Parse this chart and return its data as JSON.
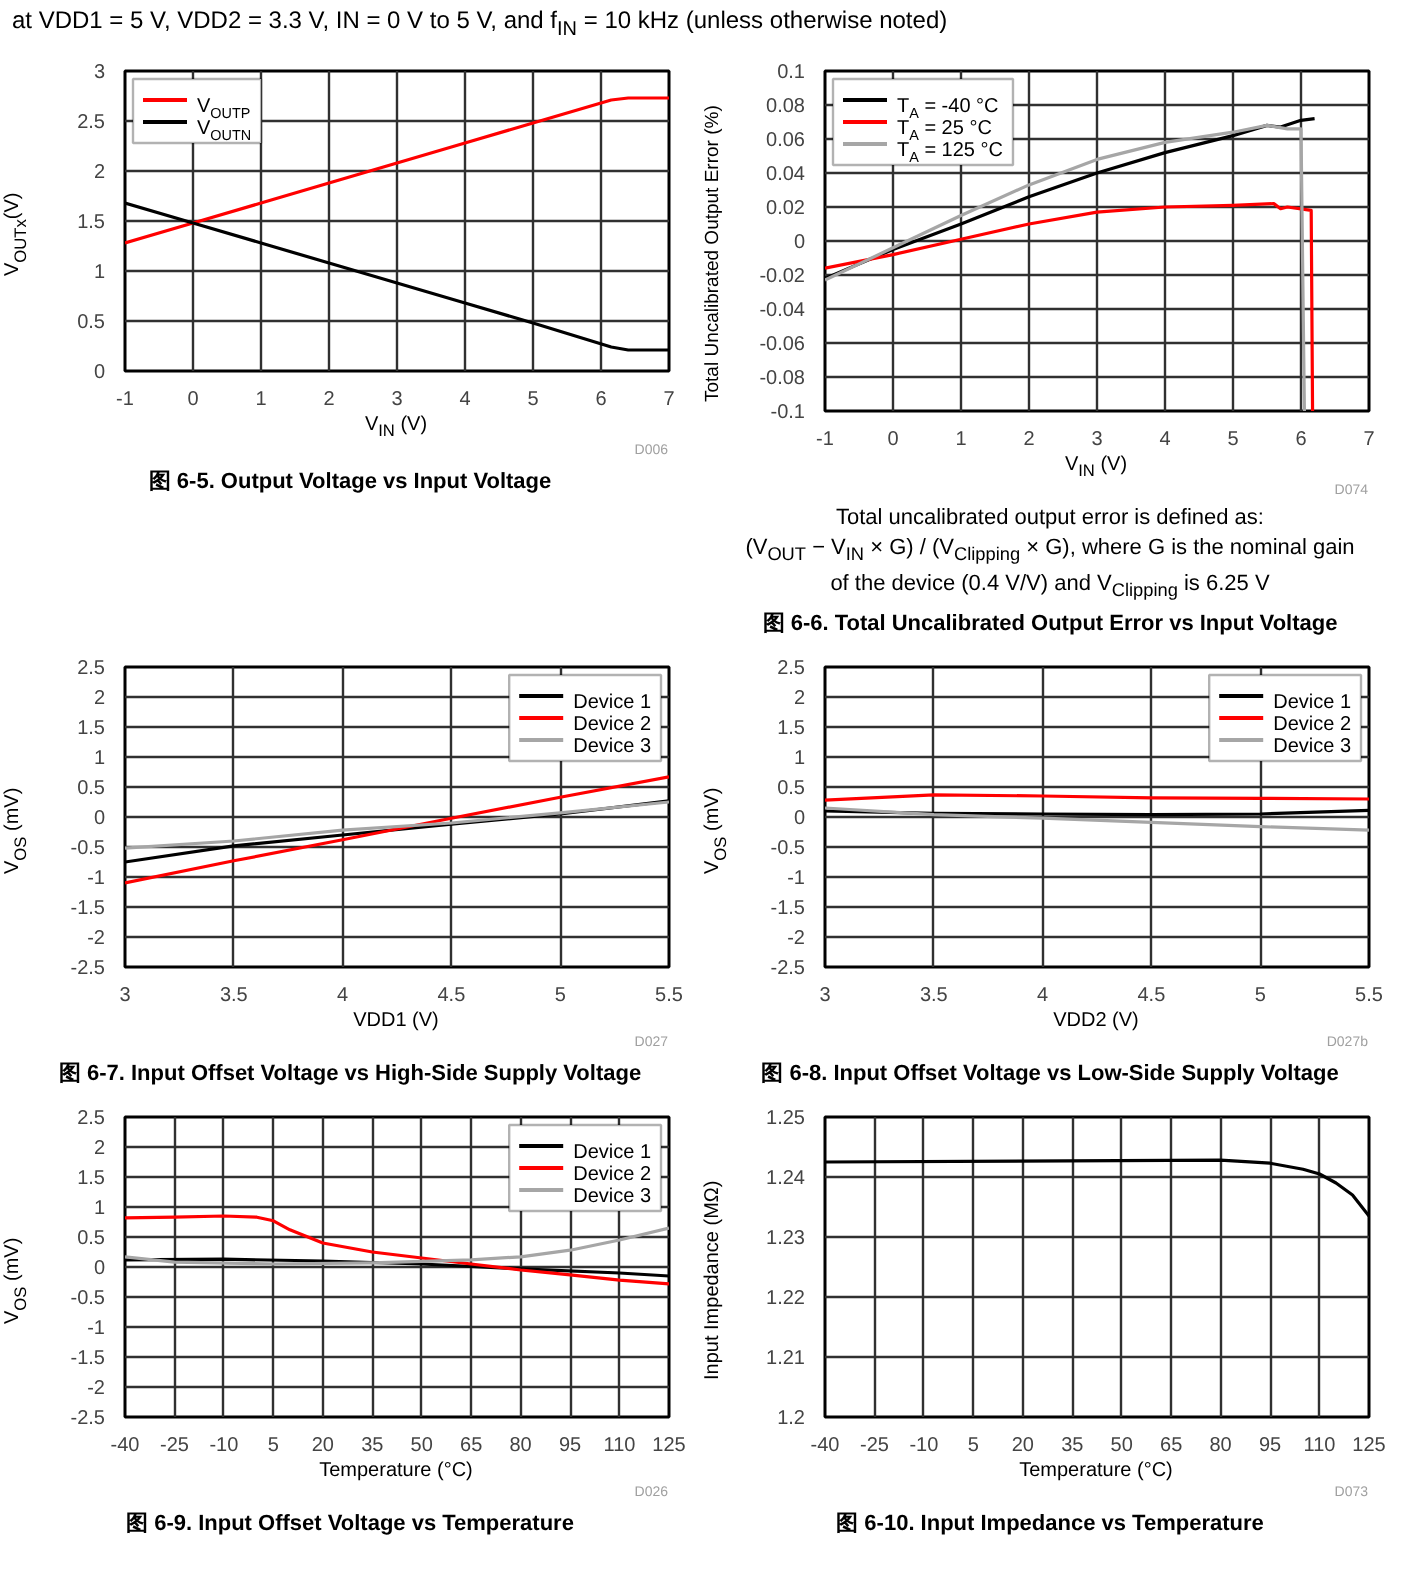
{
  "chart_data": [
    {
      "type": "line",
      "subtitle": "at VDD1 = 5 V, VDD2 = 3.3 V, IN = 0 V to 5 V, and f$_{IN}$ = 10 kHz (unless otherwise noted)",
      "title": "图 6-5. Output Voltage vs Input Voltage",
      "xlabel": "V$_{IN}$ (V)",
      "ylabel": "V$_{OUTx}$(V)",
      "annotations": [
        "D006"
      ],
      "xlim": [
        -1,
        7
      ],
      "xticks": [
        -1,
        0,
        1,
        2,
        3,
        4,
        5,
        6,
        7
      ],
      "ylim": [
        0,
        3
      ],
      "yticks": [
        0,
        0.5,
        1,
        1.5,
        2,
        2.5,
        3
      ],
      "grid": true,
      "legend": "top left",
      "series": [
        {
          "name": "V$_{OUTP}$",
          "color": "#ff0000",
          "x": [
            -1,
            0,
            1,
            2,
            3,
            4,
            5,
            6.15,
            6.4,
            7
          ],
          "values": [
            1.28,
            1.48,
            1.68,
            1.88,
            2.08,
            2.28,
            2.48,
            2.71,
            2.73,
            2.73
          ]
        },
        {
          "name": "V$_{OUTN}$",
          "color": "#000000",
          "x": [
            -1,
            0,
            1,
            2,
            3,
            4,
            5,
            6.15,
            6.4,
            7
          ],
          "values": [
            1.68,
            1.48,
            1.28,
            1.08,
            0.88,
            0.68,
            0.48,
            0.24,
            0.21,
            0.21
          ]
        }
      ]
    },
    {
      "type": "line",
      "title": "图 6-6. Total Uncalibrated Output Error vs Input Voltage",
      "xlabel": "V$_{IN}$ (V)",
      "ylabel": "Total Uncalibrated Output Error (%)",
      "annotations": [
        "D074",
        "Total uncalibrated output error is defined as:",
        "(V$_{OUT}$ − V$_{IN}$ × G) / (V$_{Clipping}$ × G), where G is the nominal gain",
        "of the device (0.4 V/V) and V$_{Clipping}$ is 6.25 V"
      ],
      "xlim": [
        -1,
        7
      ],
      "xticks": [
        -1,
        0,
        1,
        2,
        3,
        4,
        5,
        6,
        7
      ],
      "ylim": [
        -0.1,
        0.1
      ],
      "yticks": [
        -0.1,
        -0.08,
        -0.06,
        -0.04,
        -0.02,
        0,
        0.02,
        0.04,
        0.06,
        0.08,
        0.1
      ],
      "grid": true,
      "legend": "top left",
      "series": [
        {
          "name": "T$_{A}$ = -40 °C",
          "color": "#000000",
          "x": [
            -1,
            0,
            1,
            2,
            3,
            4,
            5,
            5.5,
            5.7,
            6,
            6.2
          ],
          "values": [
            -0.022,
            -0.005,
            0.01,
            0.026,
            0.04,
            0.052,
            0.062,
            0.068,
            0.067,
            0.071,
            0.072
          ]
        },
        {
          "name": "T$_{A}$ = 25 °C",
          "color": "#ff0000",
          "x": [
            -1,
            0,
            1,
            2,
            3,
            4,
            5,
            5.6,
            5.7,
            5.8,
            6.15,
            6.17
          ],
          "values": [
            -0.016,
            -0.008,
            0.001,
            0.01,
            0.017,
            0.02,
            0.021,
            0.022,
            0.019,
            0.02,
            0.018,
            -0.1
          ]
        },
        {
          "name": "T$_{A}$ = 125 °C",
          "color": "#a6a6a6",
          "x": [
            -1,
            0,
            1,
            2,
            3,
            4,
            5,
            5.5,
            5.8,
            6,
            6.05
          ],
          "values": [
            -0.023,
            -0.004,
            0.015,
            0.033,
            0.048,
            0.058,
            0.064,
            0.068,
            0.066,
            0.066,
            -0.1
          ]
        }
      ]
    },
    {
      "type": "line",
      "title": "图 6-7. Input Offset Voltage vs High-Side Supply Voltage",
      "xlabel": "VDD1 (V)",
      "ylabel": "V$_{OS}$ (mV)",
      "annotations": [
        "D027"
      ],
      "xlim": [
        3,
        5.5
      ],
      "xticks": [
        3,
        3.5,
        4,
        4.5,
        5,
        5.5
      ],
      "ylim": [
        -2.5,
        2.5
      ],
      "yticks": [
        -2.5,
        -2,
        -1.5,
        -1,
        -0.5,
        0,
        0.5,
        1,
        1.5,
        2,
        2.5
      ],
      "grid": true,
      "legend": "top right",
      "series": [
        {
          "name": "Device 1",
          "color": "#000000",
          "x": [
            3,
            3.5,
            4,
            4.5,
            5,
            5.5
          ],
          "values": [
            -0.75,
            -0.48,
            -0.3,
            -0.12,
            0.05,
            0.27
          ]
        },
        {
          "name": "Device 2",
          "color": "#ff0000",
          "x": [
            3,
            3.5,
            4,
            4.5,
            5,
            5.5
          ],
          "values": [
            -1.1,
            -0.73,
            -0.38,
            -0.02,
            0.33,
            0.67
          ]
        },
        {
          "name": "Device 3",
          "color": "#a6a6a6",
          "x": [
            3,
            3.5,
            4,
            4.5,
            5,
            5.5
          ],
          "values": [
            -0.52,
            -0.4,
            -0.22,
            -0.1,
            0.07,
            0.25
          ]
        }
      ]
    },
    {
      "type": "line",
      "title": "图 6-8. Input Offset Voltage vs Low-Side Supply Voltage",
      "xlabel": "VDD2 (V)",
      "ylabel": "V$_{OS}$ (mV)",
      "annotations": [
        "D027b"
      ],
      "xlim": [
        3,
        5.5
      ],
      "xticks": [
        3,
        3.5,
        4,
        4.5,
        5,
        5.5
      ],
      "ylim": [
        -2.5,
        2.5
      ],
      "yticks": [
        -2.5,
        -2,
        -1.5,
        -1,
        -0.5,
        0,
        0.5,
        1,
        1.5,
        2,
        2.5
      ],
      "grid": true,
      "legend": "top right",
      "series": [
        {
          "name": "Device 1",
          "color": "#000000",
          "x": [
            3,
            3.5,
            4,
            4.5,
            5,
            5.5
          ],
          "values": [
            0.1,
            0.06,
            0.05,
            0.04,
            0.05,
            0.11
          ]
        },
        {
          "name": "Device 2",
          "color": "#ff0000",
          "x": [
            3,
            3.5,
            4,
            4.5,
            5,
            5.5
          ],
          "values": [
            0.28,
            0.37,
            0.35,
            0.32,
            0.31,
            0.3
          ]
        },
        {
          "name": "Device 3",
          "color": "#a6a6a6",
          "x": [
            3,
            3.5,
            4,
            4.5,
            5,
            5.5
          ],
          "values": [
            0.15,
            0.04,
            -0.02,
            -0.09,
            -0.16,
            -0.22
          ]
        }
      ]
    },
    {
      "type": "line",
      "title": "图 6-9. Input Offset Voltage vs Temperature",
      "xlabel": "Temperature (°C)",
      "ylabel": "V$_{OS}$ (mV)",
      "annotations": [
        "D026"
      ],
      "xlim": [
        -40,
        125
      ],
      "xticks": [
        -40,
        -25,
        -10,
        5,
        20,
        35,
        50,
        65,
        80,
        95,
        110,
        125
      ],
      "ylim": [
        -2.5,
        2.5
      ],
      "yticks": [
        -2.5,
        -2,
        -1.5,
        -1,
        -0.5,
        0,
        0.5,
        1,
        1.5,
        2,
        2.5
      ],
      "grid": true,
      "legend": "top right",
      "series": [
        {
          "name": "Device 1",
          "color": "#000000",
          "x": [
            -40,
            -10,
            20,
            50,
            80,
            110,
            125
          ],
          "values": [
            0.12,
            0.13,
            0.1,
            0.05,
            -0.03,
            -0.1,
            -0.15
          ]
        },
        {
          "name": "Device 2",
          "color": "#ff0000",
          "x": [
            -40,
            -25,
            -10,
            0,
            5,
            10,
            20,
            35,
            50,
            65,
            80,
            95,
            110,
            125
          ],
          "values": [
            0.82,
            0.83,
            0.85,
            0.83,
            0.77,
            0.62,
            0.4,
            0.25,
            0.15,
            0.05,
            -0.05,
            -0.13,
            -0.22,
            -0.28
          ]
        },
        {
          "name": "Device 3",
          "color": "#a6a6a6",
          "x": [
            -40,
            -25,
            5,
            35,
            65,
            80,
            95,
            110,
            125
          ],
          "values": [
            0.17,
            0.08,
            0.05,
            0.07,
            0.12,
            0.17,
            0.28,
            0.45,
            0.65
          ]
        }
      ]
    },
    {
      "type": "line",
      "title": "图 6-10. Input Impedance vs Temperature",
      "xlabel": "Temperature (°C)",
      "ylabel": "Input Impedance (MΩ)",
      "annotations": [
        "D073"
      ],
      "xlim": [
        -40,
        125
      ],
      "xticks": [
        -40,
        -25,
        -10,
        5,
        20,
        35,
        50,
        65,
        80,
        95,
        110,
        125
      ],
      "ylim": [
        1.2,
        1.25
      ],
      "yticks": [
        1.2,
        1.21,
        1.22,
        1.23,
        1.24,
        1.25
      ],
      "grid": true,
      "series": [
        {
          "color": "#000000",
          "x": [
            -40,
            80,
            95,
            105,
            110,
            115,
            120,
            125
          ],
          "values": [
            1.2425,
            1.2428,
            1.2423,
            1.2413,
            1.2405,
            1.239,
            1.237,
            1.2335
          ]
        }
      ]
    }
  ]
}
